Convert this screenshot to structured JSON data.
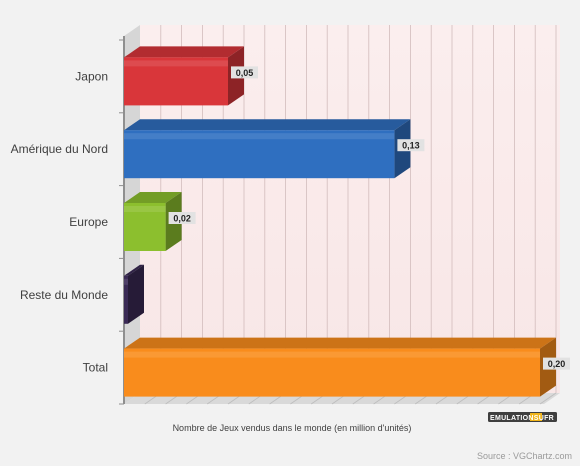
{
  "chart_data": {
    "type": "bar",
    "orientation": "horizontal",
    "style": "3d",
    "categories": [
      "Japon",
      "Amérique du Nord",
      "Europe",
      "Reste du Monde",
      "Total"
    ],
    "values": [
      0.05,
      0.13,
      0.02,
      0.0,
      0.2
    ],
    "value_labels": [
      "0,05",
      "0,13",
      "0,02",
      "",
      "0,20"
    ],
    "colors": [
      "#d9363a",
      "#2f6fc0",
      "#8cbf2e",
      "#3a2a55",
      "#f98c1c"
    ],
    "xlabel": "Nombre de Jeux vendus dans le monde (en million d'unités)",
    "xlim": [
      0,
      0.2
    ],
    "grid": true,
    "legend": "none"
  },
  "source": "Source : VGChartz.com",
  "logo": "EMULATIONSUFR"
}
